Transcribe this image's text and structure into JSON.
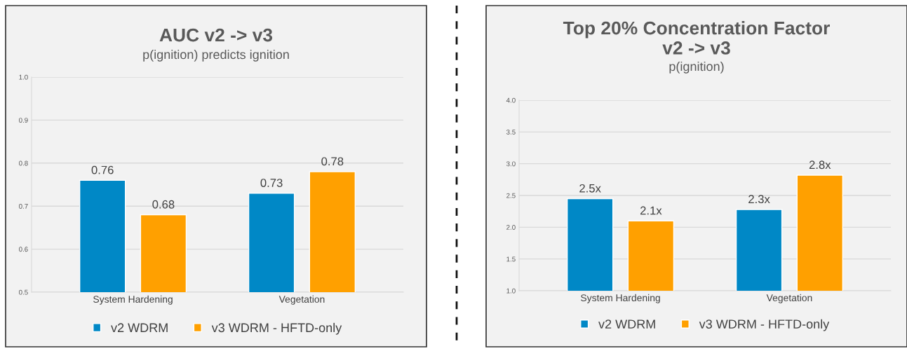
{
  "chart_data": [
    {
      "type": "bar",
      "title": "AUC v2 -> v3",
      "subtitle": "p(ignition) predicts ignition",
      "categories": [
        "System Hardening",
        "Vegetation"
      ],
      "series": [
        {
          "name": "v2 WDRM",
          "color": "#0088c6",
          "values": [
            0.76,
            0.73
          ]
        },
        {
          "name": "v3 WDRM - HFTD-only",
          "color": "#ffa000",
          "values": [
            0.68,
            0.78
          ]
        }
      ],
      "ylim": [
        0.5,
        1.0
      ],
      "yticks": [
        {
          "value": 0.5,
          "label": "0.5"
        },
        {
          "value": 0.6,
          "label": "0.6"
        },
        {
          "value": 0.7,
          "label": "0.7"
        },
        {
          "value": 0.8,
          "label": "0.8"
        },
        {
          "value": 0.9,
          "label": "0.9"
        },
        {
          "value": 1.0,
          "label": "1.0"
        }
      ],
      "grid": "y",
      "legend": "bottom",
      "data_labels": true
    },
    {
      "type": "bar",
      "title": "Top 20% Concentration Factor\nv2 -> v3",
      "subtitle": "p(ignition)",
      "categories": [
        "System Hardening",
        "Vegetation"
      ],
      "series": [
        {
          "name": "v2 WDRM",
          "color": "#0088c6",
          "values": [
            2.45,
            2.28
          ],
          "value_labels": [
            "2.5x",
            "2.3x"
          ]
        },
        {
          "name": "v3 WDRM - HFTD-only",
          "color": "#ffa000",
          "values": [
            2.1,
            2.82
          ],
          "value_labels": [
            "2.1x",
            "2.8x"
          ]
        }
      ],
      "ylim": [
        1.0,
        4.0
      ],
      "yticks": [
        {
          "value": 1.0,
          "label": "1.0"
        },
        {
          "value": 1.5,
          "label": "1.5"
        },
        {
          "value": 2.0,
          "label": "2.0"
        },
        {
          "value": 2.5,
          "label": "2.5"
        },
        {
          "value": 3.0,
          "label": "3.0"
        },
        {
          "value": 3.5,
          "label": "3.5"
        },
        {
          "value": 4.0,
          "label": "4.0"
        }
      ],
      "grid": "y",
      "legend": "bottom"
    }
  ]
}
